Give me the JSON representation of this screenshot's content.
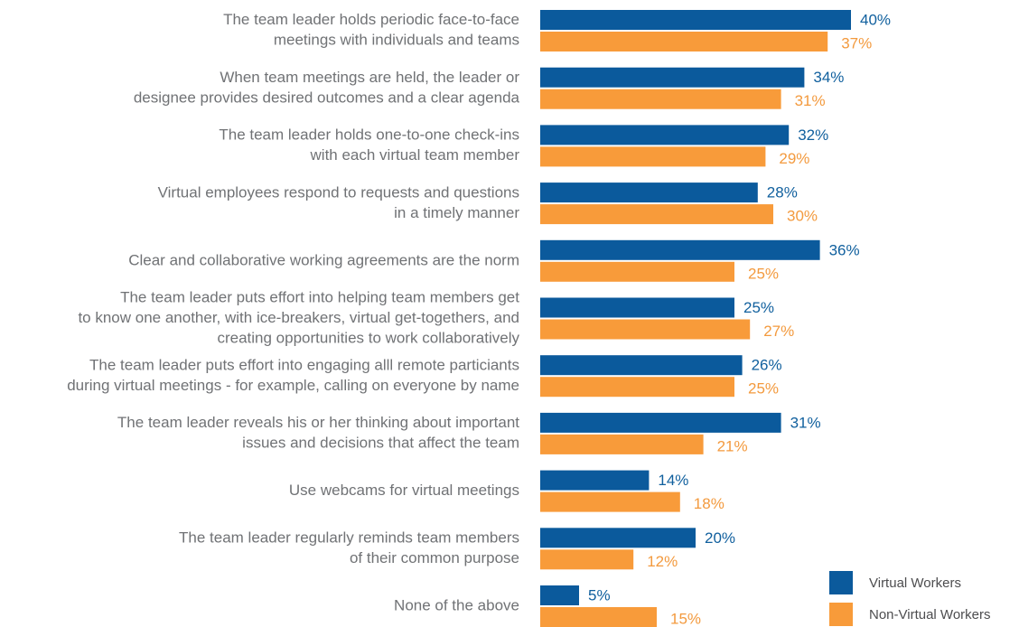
{
  "chart_data": {
    "type": "bar",
    "orientation": "horizontal",
    "categories": [
      [
        "The team leader holds periodic face-to-face",
        "meetings with individuals and teams"
      ],
      [
        "When team meetings are held, the leader or",
        "designee provides desired outcomes and a clear agenda"
      ],
      [
        "The team leader holds one-to-one check-ins",
        "with each virtual team member"
      ],
      [
        "Virtual employees respond to requests and questions",
        "in a timely manner"
      ],
      [
        "Clear and collaborative working agreements are the norm"
      ],
      [
        "The team leader puts effort into helping team members get",
        "to know one another, with ice-breakers, virtual get-togethers, and",
        "creating opportunities to work collaboratively"
      ],
      [
        "The team leader puts effort into engaging alll remote particiants",
        "during virtual meetings - for example, calling on everyone by name"
      ],
      [
        "The team leader reveals his or her thinking about important",
        "issues and decisions that affect the team"
      ],
      [
        "Use webcams for virtual meetings"
      ],
      [
        "The team leader regularly reminds team members",
        "of their common purpose"
      ],
      [
        "None of the above"
      ]
    ],
    "series": [
      {
        "name": "Virtual Workers",
        "color": "#0b5a9c",
        "label_color": "#11609e",
        "values": [
          40,
          34,
          32,
          28,
          36,
          25,
          26,
          31,
          14,
          20,
          5
        ],
        "value_labels": [
          "40%",
          "34%",
          "32%",
          "28%",
          "36%",
          "25%",
          "26%",
          "31%",
          "14%",
          "20%",
          "5%"
        ]
      },
      {
        "name": "Non-Virtual Workers",
        "color": "#f89b3a",
        "label_color": "#f39a3e",
        "values": [
          37,
          31,
          29,
          30,
          25,
          27,
          25,
          21,
          18,
          12,
          15
        ],
        "value_labels": [
          "37%",
          "31%",
          "29%",
          "30%",
          "25%",
          "27%",
          "25%",
          "21%",
          "18%",
          "12%",
          "15%"
        ]
      }
    ],
    "legend": "bottom-right"
  }
}
